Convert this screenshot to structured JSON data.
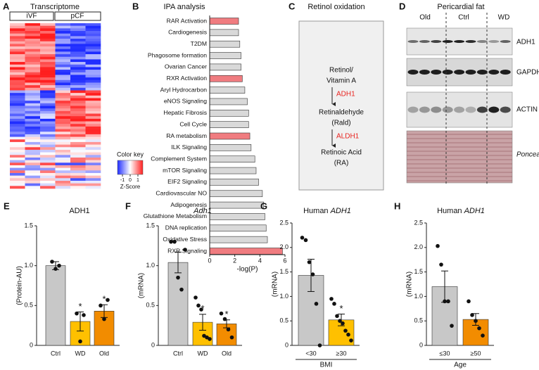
{
  "heatmap": {
    "panel": "A",
    "title": "Transcriptome",
    "groups": [
      "iVF",
      "pCF"
    ],
    "color_key": {
      "title": "Color key",
      "ticks": [
        -1,
        0,
        1
      ],
      "label": "Z-Score"
    }
  },
  "diagram": {
    "panel": "C",
    "title": "Retinol oxidation",
    "compounds": [
      [
        "Retinol/",
        "Vitamin A"
      ],
      [
        "Retinaldehyde",
        "(Rald)"
      ],
      [
        "Retinoic Acid",
        "(RA)"
      ]
    ],
    "enzymes": [
      "ADH1",
      "ALDH1"
    ]
  },
  "blot": {
    "panel": "D",
    "title": "Pericardial fat",
    "groups": [
      "Old",
      "Ctrl",
      "WD"
    ],
    "rows": [
      "ADH1",
      "GAPDH",
      "ACTIN",
      "Ponceau"
    ]
  },
  "chart_data": [
    {
      "type": "bar",
      "orientation": "horizontal",
      "panel": "B",
      "title": "IPA analysis",
      "xlabel": "-log(P)",
      "categories": [
        "RAR Activation",
        "Cardiogenesis",
        "T2DM",
        "Phagosome formation",
        "Ovarian Cancer",
        "RXR Activation",
        "Aryl Hydrocarbon",
        "eNOS Signaling",
        "Hepatic Fibrosis",
        "Cell Cycle",
        "RA metabolism",
        "ILK Signaling",
        "Complement System",
        "mTOR Signaling",
        "EIF2 Signaling",
        "Cardiovascular NO",
        "Adipogenesis",
        "Glutathione Metabolism",
        "DNA replication",
        "Oxidative Stress",
        "RXR Signaling"
      ],
      "values": [
        2.3,
        2.3,
        2.4,
        2.5,
        2.5,
        2.6,
        2.8,
        3.0,
        3.1,
        3.1,
        3.2,
        3.3,
        3.6,
        3.7,
        3.9,
        4.2,
        4.3,
        4.4,
        4.5,
        4.6,
        5.8
      ],
      "colors": [
        "#f07c80",
        "#d9d9d9",
        "#d9d9d9",
        "#d9d9d9",
        "#d9d9d9",
        "#f07c80",
        "#d9d9d9",
        "#d9d9d9",
        "#d9d9d9",
        "#d9d9d9",
        "#f07c80",
        "#d9d9d9",
        "#d9d9d9",
        "#d9d9d9",
        "#d9d9d9",
        "#d9d9d9",
        "#d9d9d9",
        "#d9d9d9",
        "#d9d9d9",
        "#d9d9d9",
        "#f07c80"
      ],
      "xlim": [
        0,
        6
      ],
      "xticks": [
        0,
        2,
        4,
        6
      ]
    },
    {
      "type": "bar",
      "panel": "E",
      "title": [
        "ADH1"
      ],
      "italic": [
        false
      ],
      "ylabel": "(Protein-AU)",
      "categories": [
        "Ctrl",
        "WD",
        "Old"
      ],
      "values": [
        1.0,
        0.3,
        0.43
      ],
      "errors": [
        0.05,
        0.12,
        0.08
      ],
      "points": [
        [
          1.05,
          0.96,
          1.0
        ],
        [
          0.4,
          0.05,
          0.38
        ],
        [
          0.5,
          0.33,
          0.57
        ]
      ],
      "colors": [
        "#c8c8c8",
        "#ffc000",
        "#f28c00"
      ],
      "significance": [
        null,
        "*",
        "*"
      ],
      "ylim": [
        0,
        1.5
      ],
      "yticks": [
        0,
        0.5,
        {
          "value": 1,
          "label": "1.0"
        },
        1.5
      ]
    },
    {
      "type": "bar",
      "panel": "F",
      "title": [
        "Adh1"
      ],
      "italic": [
        true
      ],
      "ylabel": "(mRNA)",
      "categories": [
        "Ctrl",
        "WD",
        "Old"
      ],
      "values": [
        1.04,
        0.29,
        0.27
      ],
      "errors": [
        0.13,
        0.1,
        0.05
      ],
      "points": [
        [
          1.3,
          1.3,
          0.85,
          0.7,
          1.2
        ],
        [
          0.6,
          0.5,
          0.45,
          0.12,
          0.1,
          0.08
        ],
        [
          0.4,
          0.33,
          0.2,
          0.1
        ]
      ],
      "colors": [
        "#c8c8c8",
        "#ffc000",
        "#f28c00"
      ],
      "significance": [
        null,
        "*",
        "*"
      ],
      "ylim": [
        0,
        1.5
      ],
      "yticks": [
        0,
        0.5,
        {
          "value": 1,
          "label": "1.0"
        },
        1.5
      ]
    },
    {
      "type": "bar",
      "panel": "G",
      "title": [
        "Human",
        "ADH1"
      ],
      "italic": [
        false,
        true
      ],
      "ylabel": "(mRNA)",
      "xlabel": "BMI",
      "categories": [
        "<30",
        "≥30"
      ],
      "values": [
        1.43,
        0.52
      ],
      "errors": [
        0.33,
        0.12
      ],
      "points": [
        [
          2.2,
          2.15,
          1.7,
          1.45,
          0.85,
          0.0
        ],
        [
          0.95,
          0.85,
          0.6,
          0.5,
          0.45,
          0.3,
          0.22,
          0.1
        ]
      ],
      "colors": [
        "#c8c8c8",
        "#ffc000"
      ],
      "significance": [
        null,
        "*"
      ],
      "ylim": [
        0,
        2.5
      ],
      "yticks": [
        0,
        0.5,
        {
          "value": 1,
          "label": "1.0"
        },
        1.5,
        {
          "value": 2,
          "label": "2.0"
        },
        2.5
      ]
    },
    {
      "type": "bar",
      "panel": "H",
      "title": [
        "Human",
        "ADH1"
      ],
      "italic": [
        false,
        true
      ],
      "ylabel": "(mRNA)",
      "xlabel": "Age",
      "categories": [
        "≤30",
        "≥50"
      ],
      "values": [
        1.2,
        0.53
      ],
      "errors": [
        0.32,
        0.12
      ],
      "points": [
        [
          2.03,
          1.65,
          0.9,
          0.9,
          0.4
        ],
        [
          0.9,
          0.62,
          0.5,
          0.35,
          0.2
        ]
      ],
      "colors": [
        "#c8c8c8",
        "#f28c00"
      ],
      "significance": [
        null,
        null
      ],
      "ylim": [
        0,
        2.5
      ],
      "yticks": [
        0,
        0.5,
        {
          "value": 1,
          "label": "1.0"
        },
        1.5,
        {
          "value": 2,
          "label": "2.0"
        },
        2.5
      ]
    }
  ]
}
